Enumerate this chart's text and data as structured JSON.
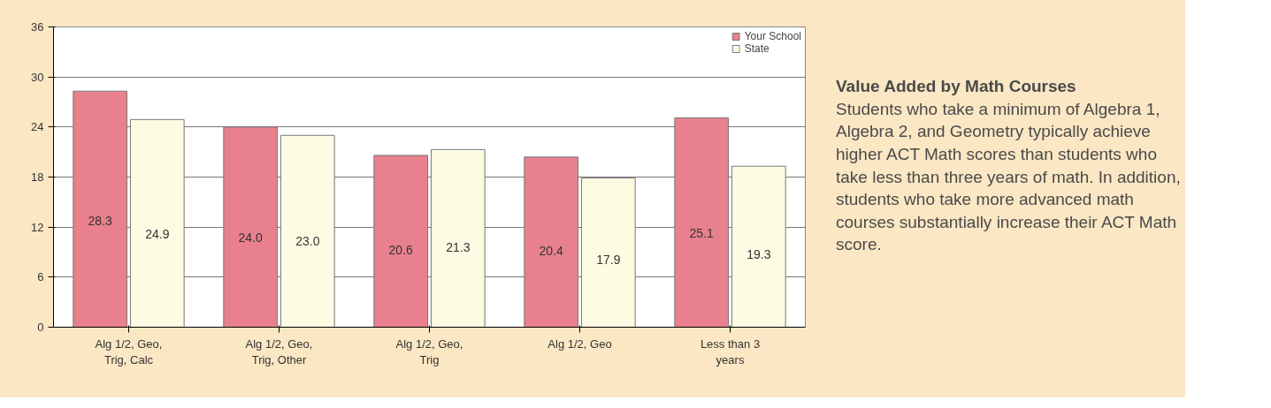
{
  "chart_data": {
    "type": "bar",
    "categories": [
      "Alg 1/2, Geo,\nTrig, Calc",
      "Alg 1/2, Geo,\nTrig, Other",
      "Alg 1/2, Geo,\nTrig",
      "Alg 1/2, Geo",
      "Less than 3\nyears"
    ],
    "series": [
      {
        "name": "Your School",
        "color": "#e8808e",
        "values": [
          28.3,
          24.0,
          20.6,
          20.4,
          25.1
        ],
        "value_labels": [
          "28.3",
          "24.0",
          "20.6",
          "20.4",
          "25.1"
        ]
      },
      {
        "name": "State",
        "color": "#fdfbe2",
        "values": [
          24.9,
          23.0,
          21.3,
          17.9,
          19.3
        ],
        "value_labels": [
          "24.9",
          "23.0",
          "21.3",
          "17.9",
          "19.3"
        ]
      }
    ],
    "ylim": [
      0,
      36
    ],
    "yticks": [
      0,
      6,
      12,
      18,
      24,
      30,
      36
    ],
    "grid": "y",
    "legend": "top right",
    "annotations": [
      "Value Added by Math Courses",
      "Students who take a minimum of Algebra 1, Algebra 2, and Geometry typically achieve higher ACT Math scores than students who take less than three years of math.  In addition, students who take more advanced math courses substantially increase their ACT Math score."
    ]
  }
}
